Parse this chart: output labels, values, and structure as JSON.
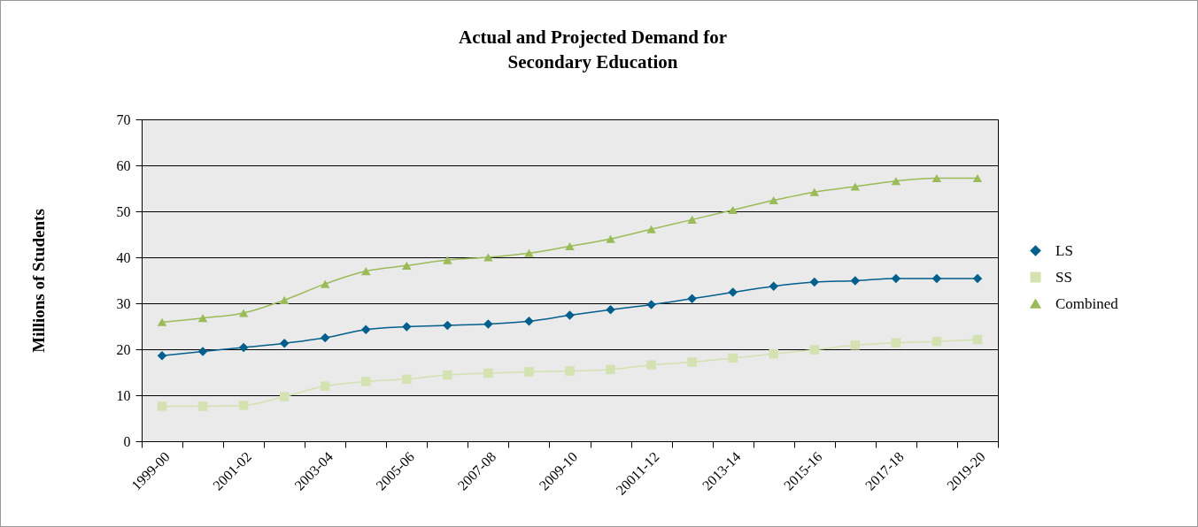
{
  "chart_data": {
    "type": "line",
    "title": "Actual and Projected Demand for\nSecondary Education",
    "ylabel": "Millions of Students",
    "categories": [
      "1999-00",
      null,
      "2001-02",
      null,
      "2003-04",
      null,
      "2005-06",
      null,
      "2007-08",
      null,
      "2009-10",
      null,
      "20011-12",
      null,
      "2013-14",
      null,
      "2015-16",
      null,
      "2017-18",
      null,
      "2019-20"
    ],
    "series": [
      {
        "name": "LS",
        "color": "#005f8c",
        "marker": "diamond",
        "values": [
          18.6,
          19.5,
          20.4,
          21.3,
          22.5,
          24.3,
          24.9,
          25.2,
          25.5,
          26.1,
          27.4,
          28.6,
          29.7,
          31.0,
          32.4,
          33.7,
          34.6,
          34.9,
          35.4,
          35.4,
          35.4
        ]
      },
      {
        "name": "SS",
        "color": "#d3e2b0",
        "marker": "square",
        "values": [
          7.6,
          7.6,
          7.8,
          9.7,
          12.0,
          13.0,
          13.5,
          14.4,
          14.8,
          15.1,
          15.3,
          15.6,
          16.6,
          17.2,
          18.1,
          19.0,
          19.9,
          20.9,
          21.4,
          21.7,
          22.1
        ]
      },
      {
        "name": "Combined",
        "color": "#9bbb59",
        "marker": "triangle",
        "values": [
          25.9,
          26.8,
          27.9,
          30.7,
          34.2,
          37.0,
          38.2,
          39.4,
          40.0,
          40.9,
          42.4,
          44.0,
          46.1,
          48.2,
          50.3,
          52.4,
          54.2,
          55.4,
          56.6,
          57.2,
          57.2
        ]
      }
    ],
    "ylim": [
      0,
      70
    ],
    "yticks": [
      0,
      10,
      20,
      30,
      40,
      50,
      60,
      70
    ],
    "grid": "y",
    "legend": "right"
  }
}
